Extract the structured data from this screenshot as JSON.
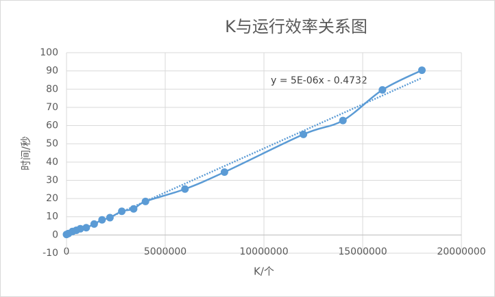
{
  "chart_data": {
    "type": "scatter",
    "title": "K与运行效率关系图",
    "x_label": "K/个",
    "y_label": "时间/秒",
    "annotation": "y = 5E-06x - 0.4732",
    "series": [
      {
        "color": "#5b9bd5",
        "x": [
          0,
          100000,
          300000,
          500000,
          700000,
          1000000,
          1400000,
          1800000,
          2200000,
          2800000,
          3400000,
          4000000,
          6000000,
          8000000,
          12000000,
          14000000,
          16000000,
          18000000
        ],
        "values": [
          0.3,
          0.8,
          1.9,
          2.6,
          3.4,
          4,
          6,
          8.3,
          9.5,
          13,
          14.3,
          18.4,
          25.2,
          34.5,
          55.2,
          62.8,
          79.6,
          90.4
        ]
      }
    ],
    "trendline": true,
    "xlim": [
      0,
      20000000
    ],
    "xticks": [
      0,
      5000000,
      10000000,
      15000000,
      20000000
    ],
    "ylim": [
      -10,
      100
    ],
    "yticks": [
      -10,
      0,
      10,
      20,
      30,
      40,
      50,
      60,
      70,
      80,
      90,
      100
    ],
    "grid": true
  }
}
